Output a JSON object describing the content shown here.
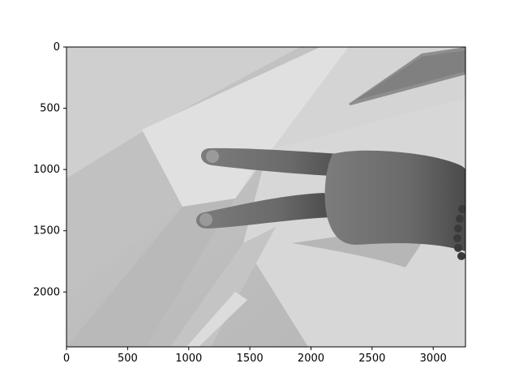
{
  "figure": {
    "kind": "image-plot",
    "image_description": "grayscale photo of a hand making a V (peace) sign against a white ceiling/wall corner",
    "xaxis": {
      "ticks": [
        0,
        500,
        1000,
        1500,
        2000,
        2500,
        3000
      ],
      "range": [
        0,
        3264
      ]
    },
    "yaxis": {
      "ticks": [
        0,
        500,
        1000,
        1500,
        2000
      ],
      "range": [
        0,
        2448
      ],
      "inverted": true
    }
  }
}
